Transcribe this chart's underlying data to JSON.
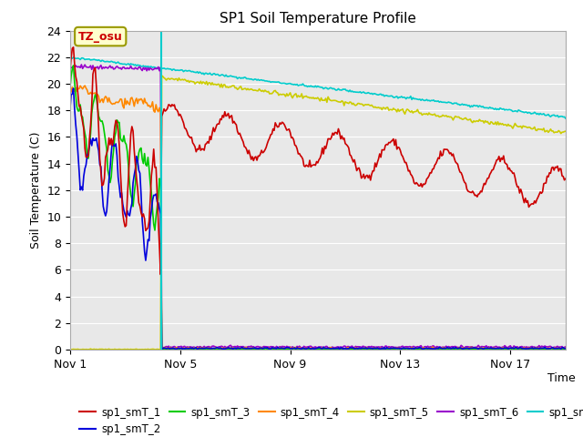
{
  "title": "SP1 Soil Temperature Profile",
  "xlabel": "Time",
  "ylabel": "Soil Temperature (C)",
  "ylim": [
    0,
    24
  ],
  "yticks": [
    0,
    2,
    4,
    6,
    8,
    10,
    12,
    14,
    16,
    18,
    20,
    22,
    24
  ],
  "xtick_positions": [
    0,
    4,
    8,
    12,
    16
  ],
  "xtick_labels": [
    "Nov 1",
    "Nov 5",
    "Nov 9",
    "Nov 13",
    "Nov 17"
  ],
  "annotation_text": "TZ_osu",
  "vline_x": 3.3,
  "background_color": "#e8e8e8",
  "figsize": [
    6.4,
    4.8
  ],
  "series": {
    "sp1_smT_1": {
      "color": "#cc0000",
      "lw": 1.2
    },
    "sp1_smT_2": {
      "color": "#0000dd",
      "lw": 1.2
    },
    "sp1_smT_3": {
      "color": "#00cc00",
      "lw": 1.2
    },
    "sp1_smT_4": {
      "color": "#ff8800",
      "lw": 1.2
    },
    "sp1_smT_5": {
      "color": "#cccc00",
      "lw": 1.2
    },
    "sp1_smT_6": {
      "color": "#9900cc",
      "lw": 1.2
    },
    "sp1_smT_7": {
      "color": "#00cccc",
      "lw": 1.2
    }
  }
}
